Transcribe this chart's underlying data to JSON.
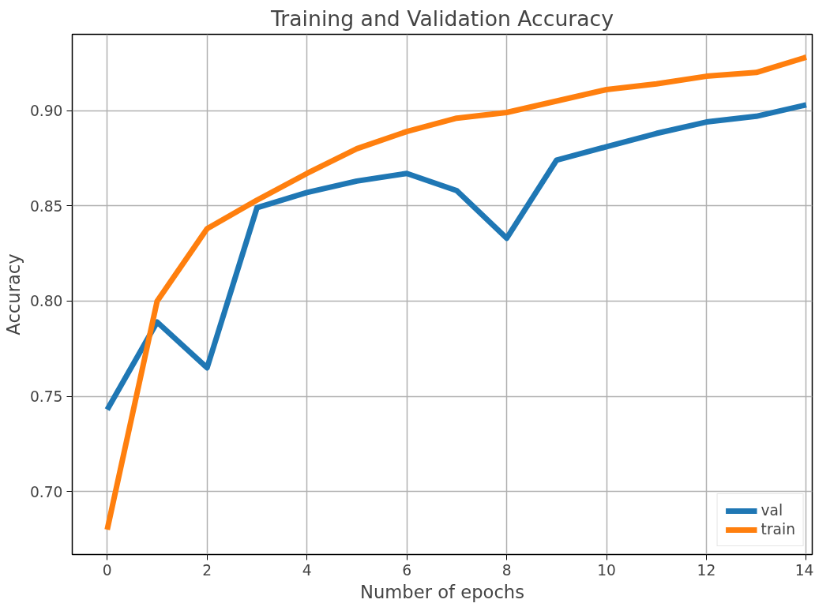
{
  "chart_data": {
    "type": "line",
    "title": "Training and Validation Accuracy",
    "xlabel": "Number of epochs",
    "ylabel": "Accuracy",
    "x": [
      0,
      1,
      2,
      3,
      4,
      5,
      6,
      7,
      8,
      9,
      10,
      11,
      12,
      13,
      14
    ],
    "series": [
      {
        "name": "val",
        "color": "#1f77b4",
        "values": [
          0.743,
          0.789,
          0.765,
          0.849,
          0.857,
          0.863,
          0.867,
          0.858,
          0.833,
          0.874,
          0.881,
          0.888,
          0.894,
          0.897,
          0.903
        ]
      },
      {
        "name": "train",
        "color": "#ff7f0e",
        "values": [
          0.68,
          0.8,
          0.838,
          0.853,
          0.867,
          0.88,
          0.889,
          0.896,
          0.899,
          0.905,
          0.911,
          0.914,
          0.918,
          0.92,
          0.928
        ]
      }
    ],
    "xlim": [
      -0.7,
      14.12
    ],
    "ylim": [
      0.667,
      0.94
    ],
    "xticks": [
      0,
      2,
      4,
      6,
      8,
      10,
      12,
      14
    ],
    "yticks": [
      {
        "value": 0.7,
        "label": "0.70"
      },
      {
        "value": 0.75,
        "label": "0.75"
      },
      {
        "value": 0.8,
        "label": "0.80"
      },
      {
        "value": 0.85,
        "label": "0.85"
      },
      {
        "value": 0.9,
        "label": "0.90"
      }
    ],
    "grid": true,
    "legend": "bottom right",
    "marker": "none",
    "line_style": "solid"
  }
}
